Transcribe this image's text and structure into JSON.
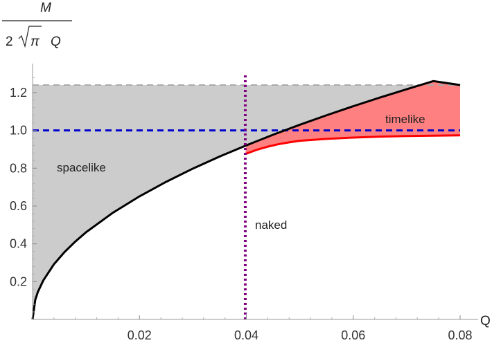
{
  "chart_data": {
    "type": "line",
    "title": "",
    "xlabel": "Q",
    "ylabel": {
      "numerator": "M",
      "denominator_prefix": "2",
      "denominator_symbol": "π",
      "denominator_suffix": "Q"
    },
    "xlim": [
      0,
      0.08
    ],
    "ylim": [
      0,
      1.24
    ],
    "x_ticks": [
      0.02,
      0.04,
      0.06,
      0.08
    ],
    "x_tick_labels": [
      "0.02",
      "0.04",
      "0.06",
      "0.08"
    ],
    "y_ticks": [
      0.2,
      0.4,
      0.6,
      0.8,
      1.0,
      1.2
    ],
    "y_tick_labels": [
      "0.2",
      "0.4",
      "0.6",
      "0.8",
      "1.0",
      "1.2"
    ],
    "grid": false,
    "series": [
      {
        "color": "#000000",
        "style": "solid",
        "x": [
          0,
          0.0005,
          0.001,
          0.002,
          0.004,
          0.006,
          0.008,
          0.01,
          0.015,
          0.02,
          0.025,
          0.03,
          0.035,
          0.04,
          0.045,
          0.05,
          0.055,
          0.06,
          0.065,
          0.07,
          0.075,
          0.08
        ],
        "y": [
          0,
          0.103,
          0.146,
          0.206,
          0.292,
          0.357,
          0.412,
          0.461,
          0.564,
          0.651,
          0.728,
          0.798,
          0.862,
          0.921,
          0.977,
          1.03,
          1.08,
          1.128,
          1.174,
          1.218,
          1.261,
          1.24
        ]
      },
      {
        "color": "#ff0000",
        "style": "solid",
        "x": [
          0.0398,
          0.042,
          0.044,
          0.046,
          0.048,
          0.05,
          0.055,
          0.06,
          0.065,
          0.07,
          0.075,
          0.08
        ],
        "y": [
          0.875,
          0.898,
          0.914,
          0.927,
          0.937,
          0.945,
          0.955,
          0.962,
          0.967,
          0.97,
          0.972,
          0.974
        ]
      },
      {
        "color": "#0000cc",
        "style": "dashed",
        "x": [
          0,
          0.08
        ],
        "y": [
          1.0,
          1.0
        ]
      },
      {
        "color": "#800080",
        "style": "dotted",
        "x": [
          0.0398,
          0.0398
        ],
        "y": [
          0,
          1.3
        ]
      },
      {
        "color": "#aaaaaa",
        "style": "dashed",
        "x": [
          0,
          0.08
        ],
        "y": [
          1.24,
          1.24
        ]
      }
    ],
    "regions": [
      {
        "label": "spacelike",
        "color": "#cccccc"
      },
      {
        "label": "timelike",
        "color": "#ff8080"
      },
      {
        "label": "naked",
        "color": ""
      }
    ]
  }
}
